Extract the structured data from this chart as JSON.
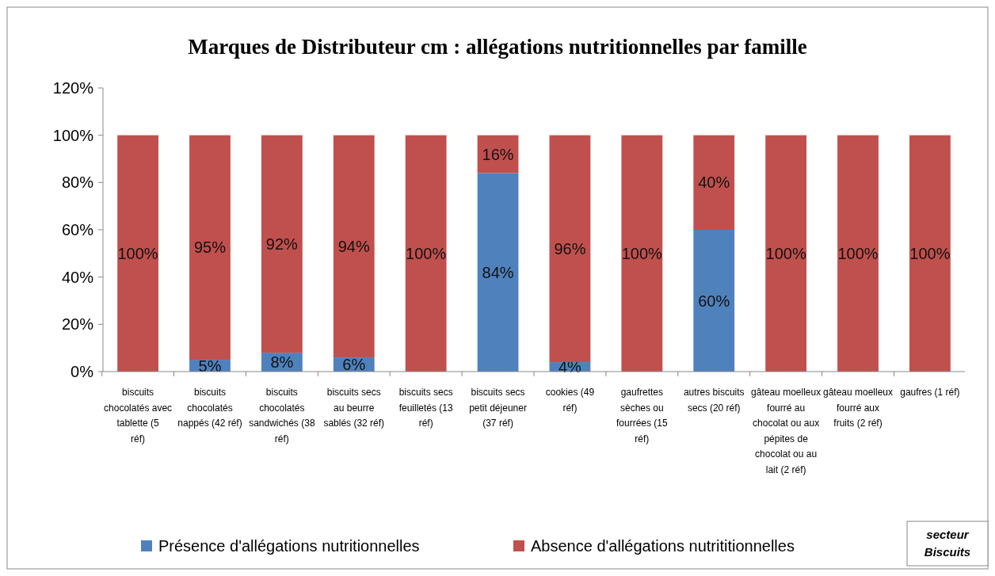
{
  "chart_data": {
    "type": "bar",
    "stacked": true,
    "title": "Marques de Distributeur cm : allégations nutritionnelles par famille",
    "categories": [
      "biscuits chocolatés avec tablette (5 réf)",
      "biscuits chocolatés nappés (42 réf)",
      "biscuits chocolatés sandwichés (38 réf)",
      "biscuits secs au beurre sablés (32 réf)",
      "biscuits secs feuilletés (13 réf)",
      "biscuits secs petit déjeuner (37 réf)",
      "cookies (49 réf)",
      "gaufrettes sèches ou fourrées (15 réf)",
      "autres biscuits secs (20 réf)",
      "gâteau moelleux fourré au chocolat ou aux pépites de chocolat ou au lait (2 réf)",
      "gâteau moelleux fourré aux fruits (2 réf)",
      "gaufres (1 réf)"
    ],
    "series": [
      {
        "name": "Présence d'allégations nutritionnelles",
        "color": "#4f81bd",
        "values": [
          0,
          5,
          8,
          6,
          0,
          84,
          4,
          0,
          60,
          0,
          0,
          0
        ],
        "value_labels": [
          null,
          "5%",
          "8%",
          "6%",
          null,
          "84%",
          "4%",
          null,
          "60%",
          null,
          null,
          null
        ]
      },
      {
        "name": "Absence d'allégations nutrititionnelles",
        "color": "#c0504d",
        "values": [
          100,
          95,
          92,
          94,
          100,
          16,
          96,
          100,
          40,
          100,
          100,
          100
        ],
        "value_labels": [
          "100%",
          "95%",
          "92%",
          "94%",
          "100%",
          "16%",
          "96%",
          "100%",
          "40%",
          "100%",
          "100%",
          "100%"
        ]
      }
    ],
    "ylim": [
      0,
      120
    ],
    "yticks": [
      {
        "value": 0,
        "label": "0%"
      },
      {
        "value": 20,
        "label": "20%"
      },
      {
        "value": 40,
        "label": "40%"
      },
      {
        "value": 60,
        "label": "60%"
      },
      {
        "value": 80,
        "label": "80%"
      },
      {
        "value": 100,
        "label": "100%"
      },
      {
        "value": 120,
        "label": "120%"
      }
    ],
    "grid": false,
    "legend": "bottom",
    "annotations": [
      "secteur Biscuits"
    ]
  }
}
